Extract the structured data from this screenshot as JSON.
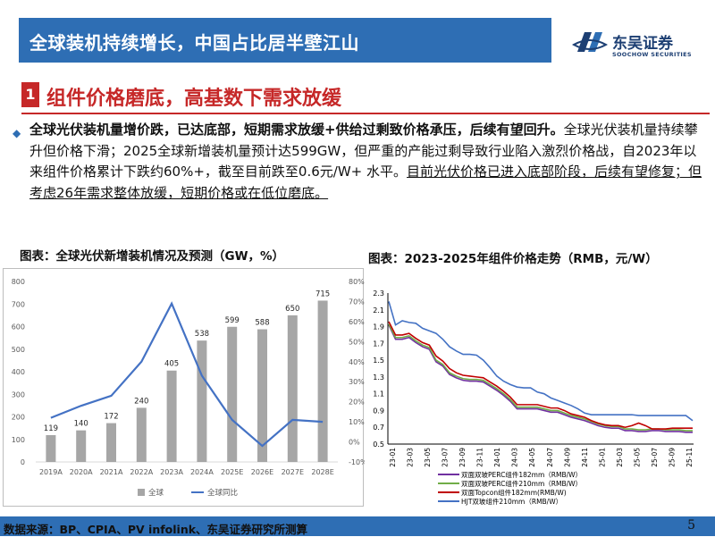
{
  "header": {
    "title": "全球装机持续增长，中国占比居半壁江山",
    "logo_cn": "东吴证券",
    "logo_en": "SOOCHOW SECURITIES"
  },
  "section": {
    "number": "1",
    "title": "组件价格磨底，高基数下需求放缓"
  },
  "body": {
    "bold_lead": "全球光伏装机量增价跌，已达底部，短期需求放缓+供给过剩致价格承压，后续有望回升。",
    "text_1": "全球光伏装机量持续攀升但价格下滑；2025全球新增装机量预计达599GW，但严重的产能过剩导致行业陷入激烈价格战，自2023年以来组件价格累计下跌约60%+，截至目前跌至0.6元/W+ 水平。",
    "underline_text": "目前光伏价格已进入底部阶段，后续有望修复；但考虑26年需求整体放缓，短期价格或在低位磨底。"
  },
  "captions": {
    "left": "图表：全球光伏新增装机情况及预测（GW，%）",
    "right": "图表：2023-2025年组件价格走势（RMB，元/W）"
  },
  "footer": {
    "source": "数据来源：BP、CPIA、PV infolink、东吴证券研究所测算",
    "page": "5"
  },
  "chart_data": [
    {
      "type": "bar",
      "title": "",
      "categories": [
        "2019A",
        "2020A",
        "2021A",
        "2022A",
        "2023A",
        "2024A",
        "2025E",
        "2026E",
        "2027E",
        "2028E"
      ],
      "series": [
        {
          "name": "全球",
          "type": "bar",
          "axis": "left",
          "values": [
            119,
            140,
            172,
            240,
            405,
            538,
            599,
            588,
            650,
            715
          ],
          "color": "#a6a6a6"
        },
        {
          "name": "全球同比",
          "type": "line",
          "axis": "right",
          "values": [
            12,
            18,
            23,
            40,
            69,
            33,
            11,
            -2,
            11,
            10
          ],
          "color": "#4472c4"
        }
      ],
      "ylim": [
        0,
        800
      ],
      "yticks": [
        0,
        100,
        200,
        300,
        400,
        500,
        600,
        700,
        800
      ],
      "y2lim": [
        -10,
        80
      ],
      "y2ticks": [
        "-10%",
        "0%",
        "10%",
        "20%",
        "30%",
        "40%",
        "50%",
        "60%",
        "70%",
        "80%"
      ],
      "legend": "bottom"
    },
    {
      "type": "line",
      "title": "",
      "xticks": [
        "23-01",
        "23-03",
        "23-05",
        "23-07",
        "23-09",
        "23-11",
        "24-01",
        "24-03",
        "24-05",
        "24-07",
        "24-09",
        "24-11",
        "25-01",
        "25-03",
        "25-05",
        "25-07",
        "25-09",
        "25-11"
      ],
      "ylim": [
        0.5,
        2.3
      ],
      "yticks": [
        "0.5",
        "0.7",
        "0.9",
        "1.1",
        "1.3",
        "1.5",
        "1.7",
        "1.9",
        "2.1",
        "2.3"
      ],
      "series": [
        {
          "name": "双面双玻PERC组件182mm（RMB/W）",
          "color": "#7030a0",
          "values": [
            1.92,
            1.75,
            1.75,
            1.77,
            1.71,
            1.66,
            1.63,
            1.48,
            1.43,
            1.33,
            1.29,
            1.26,
            1.25,
            1.25,
            1.24,
            1.19,
            1.14,
            1.08,
            1.01,
            0.92,
            0.92,
            0.92,
            0.92,
            0.9,
            0.88,
            0.88,
            0.85,
            0.82,
            0.8,
            0.78,
            0.75,
            0.72,
            0.7,
            0.69,
            0.69,
            0.66,
            0.66,
            0.65,
            0.65,
            0.66,
            0.66,
            0.65,
            0.65,
            0.65,
            0.64,
            0.64
          ]
        },
        {
          "name": "双面双玻PERC组件210mm（RMB/W）",
          "color": "#70ad47",
          "values": [
            1.93,
            1.77,
            1.77,
            1.79,
            1.73,
            1.68,
            1.65,
            1.5,
            1.45,
            1.35,
            1.31,
            1.28,
            1.27,
            1.27,
            1.26,
            1.21,
            1.16,
            1.1,
            1.03,
            0.94,
            0.94,
            0.94,
            0.94,
            0.92,
            0.9,
            0.9,
            0.87,
            0.84,
            0.82,
            0.8,
            0.77,
            0.74,
            0.72,
            0.71,
            0.71,
            0.68,
            0.68,
            0.67,
            0.67,
            0.68,
            0.68,
            0.67,
            0.67,
            0.67,
            0.66,
            0.66
          ]
        },
        {
          "name": "双面Topcon组件182mm(RMB/W)",
          "color": "#c00000",
          "values": [
            1.96,
            1.8,
            1.8,
            1.82,
            1.76,
            1.71,
            1.68,
            1.55,
            1.49,
            1.4,
            1.35,
            1.32,
            1.31,
            1.3,
            1.29,
            1.24,
            1.19,
            1.13,
            1.06,
            0.97,
            0.97,
            0.97,
            0.97,
            0.95,
            0.93,
            0.93,
            0.9,
            0.86,
            0.84,
            0.82,
            0.78,
            0.75,
            0.73,
            0.72,
            0.72,
            0.7,
            0.72,
            0.75,
            0.72,
            0.68,
            0.68,
            0.68,
            0.69,
            0.69,
            0.69,
            0.69
          ]
        },
        {
          "name": "HJT双玻组件210mm（RMB/W）",
          "color": "#4472c4",
          "values": [
            2.2,
            1.92,
            1.97,
            1.95,
            1.94,
            1.88,
            1.85,
            1.82,
            1.75,
            1.66,
            1.61,
            1.57,
            1.57,
            1.56,
            1.5,
            1.41,
            1.31,
            1.25,
            1.21,
            1.18,
            1.17,
            1.17,
            1.12,
            1.1,
            1.05,
            1.02,
            0.99,
            0.96,
            0.92,
            0.87,
            0.85,
            0.85,
            0.85,
            0.85,
            0.85,
            0.85,
            0.85,
            0.84,
            0.84,
            0.84,
            0.84,
            0.84,
            0.84,
            0.84,
            0.84,
            0.78
          ]
        }
      ],
      "legend": "bottom"
    }
  ]
}
